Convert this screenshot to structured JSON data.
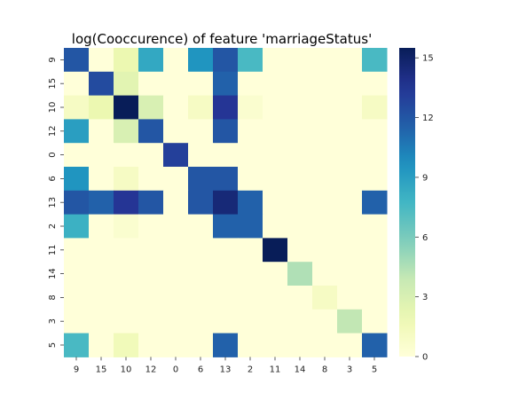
{
  "chart_data": {
    "type": "heatmap",
    "title": "log(Cooccurence) of feature 'marriageStatus'",
    "xlabel": "",
    "ylabel": "",
    "x_categories": [
      "9",
      "15",
      "10",
      "12",
      "0",
      "6",
      "13",
      "2",
      "11",
      "14",
      "8",
      "3",
      "5"
    ],
    "y_categories": [
      "9",
      "15",
      "10",
      "12",
      "0",
      "6",
      "13",
      "2",
      "11",
      "14",
      "8",
      "3",
      "5"
    ],
    "values": [
      [
        12,
        0,
        2,
        8.5,
        0,
        9.5,
        12,
        7.5,
        0,
        0,
        0,
        0,
        7.5
      ],
      [
        0,
        12.5,
        2.5,
        0,
        0,
        0,
        11.5,
        0,
        0,
        0,
        0,
        0,
        0
      ],
      [
        1,
        2,
        15.5,
        3,
        0,
        1,
        13.5,
        0.5,
        0,
        0,
        0,
        0,
        1
      ],
      [
        9,
        0,
        3,
        12,
        0,
        0,
        12,
        0,
        0,
        0,
        0,
        0,
        0
      ],
      [
        0,
        0,
        0,
        0,
        13,
        0,
        0,
        0,
        0,
        0,
        0,
        0,
        0
      ],
      [
        9.5,
        0,
        1,
        0,
        0,
        12,
        12,
        0,
        0,
        0,
        0,
        0,
        0
      ],
      [
        12,
        11.5,
        13.5,
        12,
        0,
        12,
        14.5,
        11.5,
        0,
        0,
        0,
        0,
        11.5
      ],
      [
        8,
        0,
        0.5,
        0,
        0,
        0,
        11.5,
        11.5,
        0,
        0,
        0,
        0,
        0
      ],
      [
        0,
        0,
        0,
        0,
        0,
        0,
        0,
        0,
        15.5,
        0,
        0,
        0,
        0
      ],
      [
        0,
        0,
        0,
        0,
        0,
        0,
        0,
        0,
        0,
        4.5,
        0,
        0,
        0
      ],
      [
        0,
        0,
        0,
        0,
        0,
        0,
        0,
        0,
        0,
        0,
        1,
        0,
        0
      ],
      [
        0,
        0,
        0,
        0,
        0,
        0,
        0,
        0,
        0,
        0,
        0,
        4,
        0
      ],
      [
        7.5,
        0,
        1.5,
        0,
        0,
        0,
        11.5,
        0,
        0,
        0,
        0,
        0,
        11.5
      ]
    ],
    "colorbar": {
      "min": 0,
      "max": 15.5,
      "ticks": [
        0,
        3,
        6,
        9,
        12,
        15
      ],
      "colormap": "YlGnBu"
    },
    "grid": false
  }
}
